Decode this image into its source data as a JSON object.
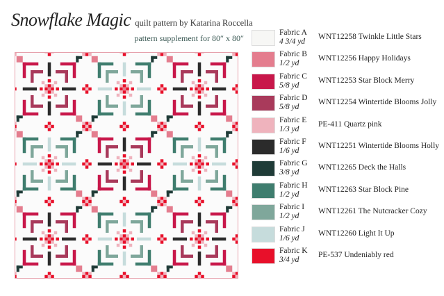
{
  "header": {
    "title_script": "Snowflake Magic",
    "byline": "quilt pattern by Katarina Roccella",
    "supplement": "pattern supplement for  80″ x 80″"
  },
  "fabrics": [
    {
      "name": "Fabric A",
      "yardage": "4 3/4 yd",
      "product": "WNT12258 Twinkle Little Stars",
      "color": "#f7f7f5"
    },
    {
      "name": "Fabric B",
      "yardage": "1/2 yd",
      "product": "WNT12256 Happy Holidays",
      "color": "#e47d8e"
    },
    {
      "name": "Fabric C",
      "yardage": "5/8 yd",
      "product": "WNT12253 Star Block Merry",
      "color": "#c8174a"
    },
    {
      "name": "Fabric D",
      "yardage": "5/8 yd",
      "product": "WNT12254 Wintertide Blooms Jolly",
      "color": "#a93a5b"
    },
    {
      "name": "Fabric E",
      "yardage": "1/3 yd",
      "product": "PE-411 Quartz pink",
      "color": "#efb3bd"
    },
    {
      "name": "Fabric F",
      "yardage": "1/6 yd",
      "product": "WNT12251 Wintertide Blooms Holly",
      "color": "#2b2b2b"
    },
    {
      "name": "Fabric G",
      "yardage": "3/8 yd",
      "product": "WNT12265 Deck the Halls",
      "color": "#1f3b37"
    },
    {
      "name": "Fabric H",
      "yardage": "1/2 yd",
      "product": "WNT12263 Star Block Pine",
      "color": "#3f7d6e"
    },
    {
      "name": "Fabric I",
      "yardage": "1/2 yd",
      "product": "WNT12261 The Nutcracker Cozy",
      "color": "#7fa79b"
    },
    {
      "name": "Fabric J",
      "yardage": "1/6 yd",
      "product": "WNT12260 Light It Up",
      "color": "#c6dcdc"
    },
    {
      "name": "Fabric K",
      "yardage": "3/4 yd",
      "product": "PE-537 Undeniably red",
      "color": "#e8102a"
    }
  ]
}
